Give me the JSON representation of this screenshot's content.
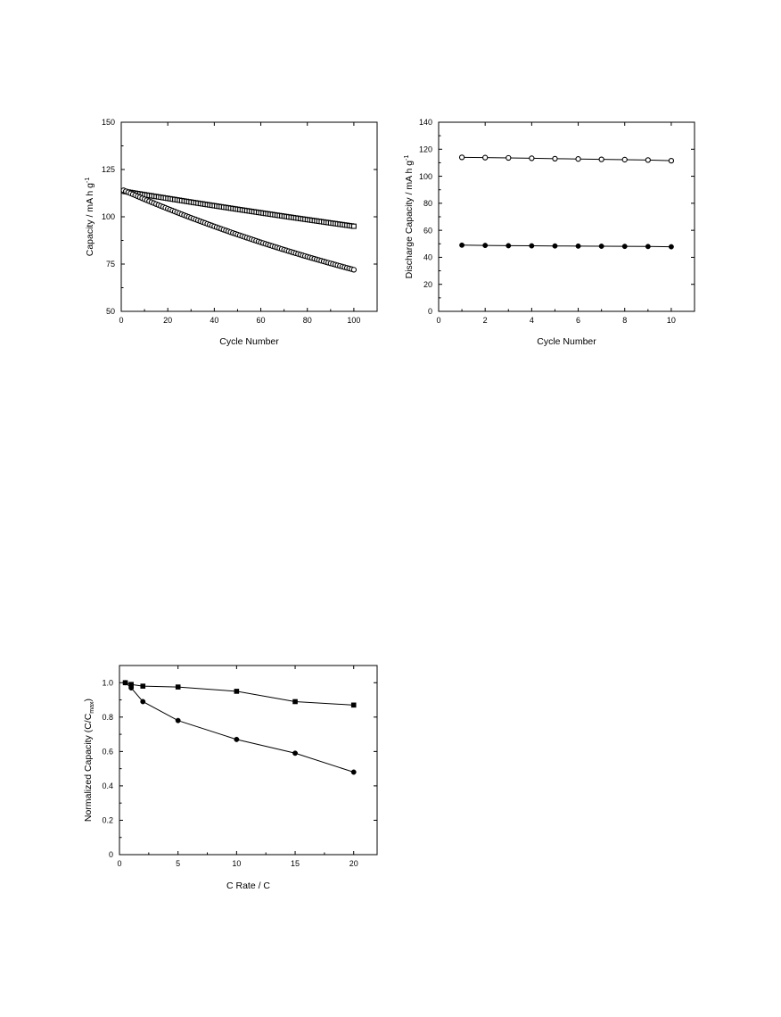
{
  "chart_data": [
    {
      "type": "scatter",
      "xlabel": "Cycle Number",
      "ylabel": "Capacity / mA h g",
      "ylabel_sup": "-1",
      "xlim": [
        0,
        110
      ],
      "ylim": [
        50,
        150
      ],
      "xticks": [
        0,
        20,
        40,
        60,
        80,
        100
      ],
      "yticks": [
        50,
        75,
        100,
        125,
        150
      ],
      "series": [
        {
          "marker": "open-square",
          "x_start": 1,
          "x_end": 100,
          "y_start": 113.5,
          "y_end": 95
        },
        {
          "marker": "open-circle",
          "x_start": 1,
          "x_end": 100,
          "y_start": 114,
          "y_end": 72
        }
      ]
    },
    {
      "type": "line",
      "xlabel": "Cycle Number",
      "ylabel": "Discharge Capacity / mA h g",
      "ylabel_sup": "-1",
      "xlim": [
        0,
        11
      ],
      "ylim": [
        0,
        140
      ],
      "xticks": [
        0,
        2,
        4,
        6,
        8,
        10
      ],
      "yticks": [
        0,
        20,
        40,
        60,
        80,
        100,
        120,
        140
      ],
      "x": [
        1,
        2,
        3,
        4,
        5,
        6,
        7,
        8,
        9,
        10
      ],
      "series": [
        {
          "marker": "open-circle",
          "values": [
            114,
            113.8,
            113.6,
            113.3,
            113,
            112.8,
            112.5,
            112.3,
            112,
            111.5
          ]
        },
        {
          "marker": "filled-circle",
          "values": [
            49,
            48.8,
            48.6,
            48.5,
            48.4,
            48.3,
            48.2,
            48.1,
            48,
            47.8
          ]
        }
      ]
    },
    {
      "type": "line",
      "xlabel": "C Rate / C",
      "ylabel": "Normalized Capacity (C/C",
      "ylabel_sub": "max",
      "ylabel_end": ")",
      "xlim": [
        0,
        22
      ],
      "ylim": [
        0,
        1.1
      ],
      "xticks": [
        0,
        5,
        10,
        15,
        20
      ],
      "yticks": [
        0,
        0.2,
        0.4,
        0.6,
        0.8,
        1.0
      ],
      "ytick_labels": [
        "0",
        "0.2",
        "0.4",
        "0.6",
        "0.8",
        "1.0"
      ],
      "series": [
        {
          "marker": "filled-square",
          "x": [
            0.5,
            1,
            2,
            5,
            10,
            15,
            20
          ],
          "values": [
            1.0,
            0.99,
            0.98,
            0.975,
            0.95,
            0.89,
            0.87
          ]
        },
        {
          "marker": "filled-circle",
          "x": [
            0.5,
            1,
            2,
            5,
            10,
            15,
            20
          ],
          "values": [
            1.0,
            0.97,
            0.89,
            0.78,
            0.67,
            0.59,
            0.48
          ]
        }
      ]
    }
  ]
}
